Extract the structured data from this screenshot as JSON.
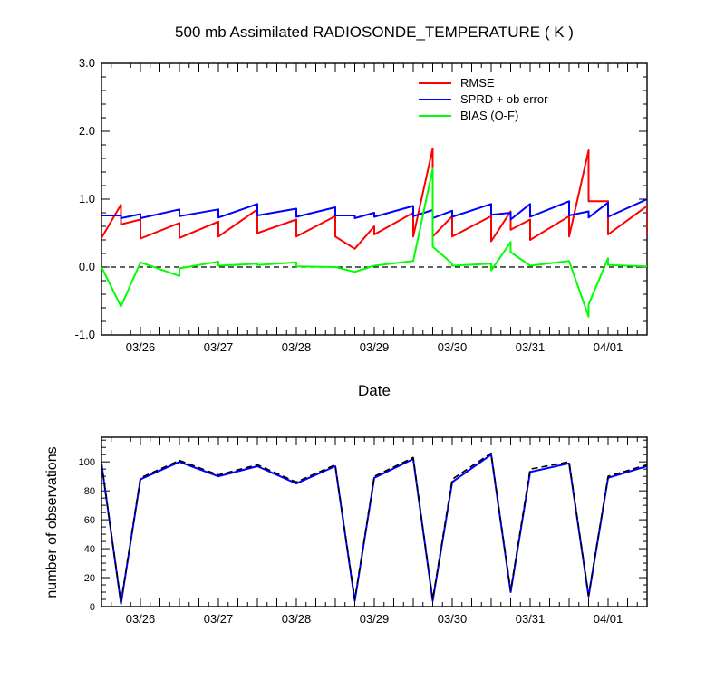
{
  "chart_data": [
    {
      "type": "line",
      "title": "500 mb Assimilated RADIOSONDE_TEMPERATURE ( K )",
      "xlabel": "Date",
      "ylabel": "",
      "xlim": [
        0,
        7.0
      ],
      "ylim": [
        -1.0,
        3.0
      ],
      "x_tick_values": [
        0.5,
        1.5,
        2.5,
        3.5,
        4.5,
        5.5,
        6.5
      ],
      "x_tick_labels": [
        "03/26",
        "03/27",
        "03/28",
        "03/29",
        "03/30",
        "03/31",
        "04/01"
      ],
      "y_tick_values": [
        -1.0,
        0.0,
        1.0,
        2.0,
        3.0
      ],
      "y_tick_labels": [
        "-1.0",
        "0.0",
        "1.0",
        "2.0",
        "3.0"
      ],
      "zero_line": true,
      "legend_position": "top-right",
      "series": [
        {
          "name": "RMSE",
          "color": "#ff0000",
          "points": [
            [
              0,
              0.43
            ],
            [
              0.25,
              0.92
            ],
            [
              0.25,
              0.63
            ],
            [
              0.5,
              0.7
            ],
            [
              0.5,
              0.42
            ],
            [
              1.0,
              0.65
            ],
            [
              1.0,
              0.43
            ],
            [
              1.5,
              0.67
            ],
            [
              1.5,
              0.45
            ],
            [
              2.0,
              0.85
            ],
            [
              2.0,
              0.5
            ],
            [
              2.5,
              0.7
            ],
            [
              2.5,
              0.45
            ],
            [
              3.0,
              0.75
            ],
            [
              3.0,
              0.45
            ],
            [
              3.25,
              0.27
            ],
            [
              3.5,
              0.6
            ],
            [
              3.5,
              0.48
            ],
            [
              4.0,
              0.8
            ],
            [
              4.0,
              0.45
            ],
            [
              4.25,
              1.75
            ],
            [
              4.25,
              0.45
            ],
            [
              4.5,
              0.75
            ],
            [
              4.5,
              0.45
            ],
            [
              5.0,
              0.75
            ],
            [
              5.0,
              0.38
            ],
            [
              5.25,
              0.82
            ],
            [
              5.25,
              0.55
            ],
            [
              5.5,
              0.7
            ],
            [
              5.5,
              0.4
            ],
            [
              6.0,
              0.75
            ],
            [
              6.0,
              0.45
            ],
            [
              6.25,
              1.72
            ],
            [
              6.25,
              0.97
            ],
            [
              6.5,
              0.97
            ],
            [
              6.5,
              0.48
            ],
            [
              7.0,
              0.9
            ],
            [
              7.0,
              0.48
            ]
          ]
        },
        {
          "name": "SPRD + ob error",
          "color": "#0000ff",
          "points": [
            [
              0,
              0.76
            ],
            [
              0.25,
              0.76
            ],
            [
              0.25,
              0.72
            ],
            [
              0.5,
              0.78
            ],
            [
              0.5,
              0.72
            ],
            [
              1.0,
              0.85
            ],
            [
              1.0,
              0.75
            ],
            [
              1.5,
              0.85
            ],
            [
              1.5,
              0.73
            ],
            [
              2.0,
              0.93
            ],
            [
              2.0,
              0.76
            ],
            [
              2.5,
              0.86
            ],
            [
              2.5,
              0.74
            ],
            [
              3.0,
              0.88
            ],
            [
              3.0,
              0.76
            ],
            [
              3.25,
              0.76
            ],
            [
              3.25,
              0.72
            ],
            [
              3.5,
              0.8
            ],
            [
              3.5,
              0.74
            ],
            [
              4.0,
              0.9
            ],
            [
              4.0,
              0.75
            ],
            [
              4.25,
              0.84
            ],
            [
              4.25,
              0.72
            ],
            [
              4.5,
              0.83
            ],
            [
              4.5,
              0.74
            ],
            [
              5.0,
              0.93
            ],
            [
              5.0,
              0.77
            ],
            [
              5.25,
              0.8
            ],
            [
              5.25,
              0.7
            ],
            [
              5.5,
              0.93
            ],
            [
              5.5,
              0.74
            ],
            [
              6.0,
              0.97
            ],
            [
              6.0,
              0.76
            ],
            [
              6.25,
              0.82
            ],
            [
              6.25,
              0.73
            ],
            [
              6.5,
              0.95
            ],
            [
              6.5,
              0.74
            ],
            [
              7.0,
              1.0
            ]
          ]
        },
        {
          "name": "BIAS (O-F)",
          "color": "#00ff00",
          "points": [
            [
              0,
              0.0
            ],
            [
              0.25,
              -0.58
            ],
            [
              0.5,
              0.07
            ],
            [
              1.0,
              -0.13
            ],
            [
              1.0,
              -0.02
            ],
            [
              1.5,
              0.08
            ],
            [
              1.5,
              0.02
            ],
            [
              2.0,
              0.05
            ],
            [
              2.0,
              0.03
            ],
            [
              2.5,
              0.07
            ],
            [
              2.5,
              0.01
            ],
            [
              3.0,
              0.0
            ],
            [
              3.25,
              -0.07
            ],
            [
              3.5,
              0.02
            ],
            [
              4.0,
              0.09
            ],
            [
              4.25,
              1.45
            ],
            [
              4.25,
              0.3
            ],
            [
              4.5,
              0.05
            ],
            [
              4.5,
              0.02
            ],
            [
              5.0,
              0.05
            ],
            [
              5.0,
              -0.05
            ],
            [
              5.25,
              0.37
            ],
            [
              5.25,
              0.22
            ],
            [
              5.5,
              0.02
            ],
            [
              6.0,
              0.09
            ],
            [
              6.25,
              -0.73
            ],
            [
              6.25,
              -0.55
            ],
            [
              6.5,
              0.13
            ],
            [
              6.5,
              0.03
            ],
            [
              7.0,
              0.01
            ]
          ]
        }
      ]
    },
    {
      "type": "line",
      "title": "",
      "xlabel": "",
      "ylabel": "number of observations",
      "xlim": [
        0,
        7.0
      ],
      "ylim": [
        0,
        117
      ],
      "x_tick_values": [
        0.5,
        1.5,
        2.5,
        3.5,
        4.5,
        5.5,
        6.5
      ],
      "x_tick_labels": [
        "03/26",
        "03/27",
        "03/28",
        "03/29",
        "03/30",
        "03/31",
        "04/01"
      ],
      "y_tick_values": [
        0,
        20,
        40,
        60,
        80,
        100
      ],
      "y_tick_labels": [
        "0",
        "20",
        "40",
        "60",
        "80",
        "100"
      ],
      "series": [
        {
          "color": "#0000ff",
          "style": "solid",
          "points": [
            [
              0,
              99
            ],
            [
              0.25,
              2
            ],
            [
              0.5,
              88
            ],
            [
              1.0,
              100
            ],
            [
              1.5,
              90
            ],
            [
              2.0,
              97
            ],
            [
              2.5,
              85
            ],
            [
              3.0,
              97
            ],
            [
              3.25,
              4
            ],
            [
              3.5,
              89
            ],
            [
              4.0,
              102
            ],
            [
              4.25,
              4
            ],
            [
              4.5,
              86
            ],
            [
              5.0,
              105
            ],
            [
              5.25,
              10
            ],
            [
              5.5,
              93
            ],
            [
              6.0,
              99
            ],
            [
              6.25,
              7
            ],
            [
              6.5,
              89
            ],
            [
              7.0,
              97
            ]
          ]
        },
        {
          "color": "#000000",
          "style": "dashed",
          "points": [
            [
              0,
              99
            ],
            [
              0.25,
              3
            ],
            [
              0.5,
              89
            ],
            [
              1.0,
              101
            ],
            [
              1.5,
              91
            ],
            [
              2.0,
              98
            ],
            [
              2.5,
              86
            ],
            [
              3.0,
              98
            ],
            [
              3.25,
              5
            ],
            [
              3.5,
              90
            ],
            [
              4.0,
              103
            ],
            [
              4.25,
              5
            ],
            [
              4.5,
              88
            ],
            [
              5.0,
              106
            ],
            [
              5.25,
              11
            ],
            [
              5.5,
              95
            ],
            [
              6.0,
              100
            ],
            [
              6.25,
              8
            ],
            [
              6.5,
              90
            ],
            [
              7.0,
              98
            ]
          ]
        }
      ]
    }
  ]
}
